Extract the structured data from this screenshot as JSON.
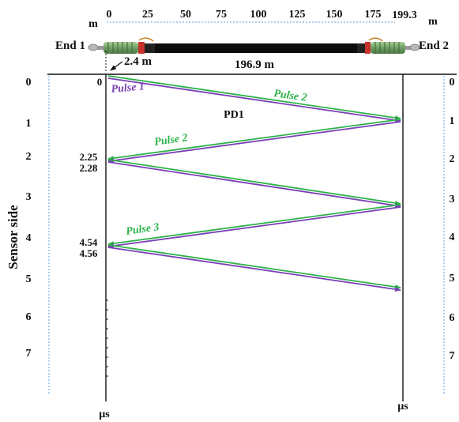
{
  "scale": {
    "unit_left": "m",
    "unit_right": "m",
    "ticks": [
      "0",
      "25",
      "50",
      "75",
      "100",
      "125",
      "150",
      "175"
    ],
    "end_value": "199.3"
  },
  "cable": {
    "end1_label": "End 1",
    "end2_label": "End 2",
    "offset_label": "2.4 m",
    "length_label": "196.9 m"
  },
  "time_axis": {
    "ticks": [
      "0",
      "1",
      "2",
      "3",
      "4",
      "5",
      "6",
      "7"
    ],
    "right_ticks": [
      "0",
      "1",
      "2",
      "3",
      "4",
      "5",
      "6",
      "7"
    ],
    "unit_left": "µs",
    "unit_right": "µs",
    "side_label": "Sensor side"
  },
  "event_times": {
    "t0": "0",
    "t1": "2.25",
    "t2": "2.28",
    "t3": "4.54",
    "t4": "4.56"
  },
  "pd_label": "PD1",
  "pulses": {
    "pulse1": "Pulse 1",
    "pulse2_upper": "Pulse 2",
    "pulse2_lower": "Pulse 2",
    "pulse3": "Pulse 3"
  },
  "colors": {
    "green": "#2db34a",
    "purple": "#7a3fb8",
    "axis": "#111111",
    "dotted_blue": "#7fb2e5"
  }
}
